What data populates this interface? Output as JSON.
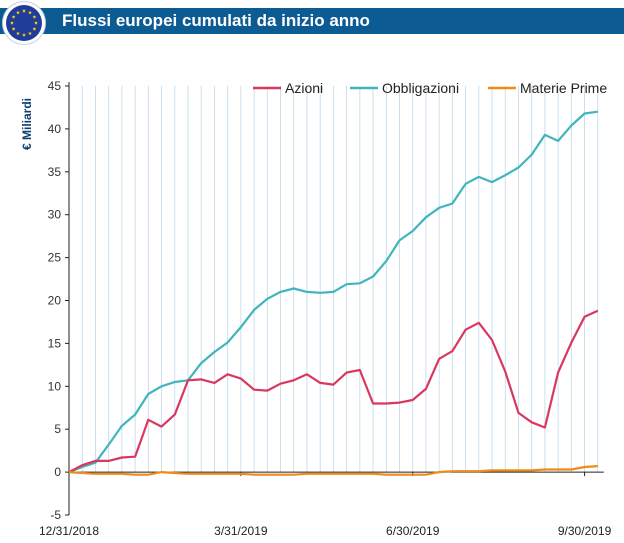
{
  "header": {
    "title": "Flussi europei cumulati da inizio anno"
  },
  "colors": {
    "header_bg": "#0d5b93",
    "azioni": "#d9385e",
    "obbligazioni": "#3fb5bd",
    "materie_prime": "#f08a19",
    "flag_blue": "#1f3d99",
    "flag_star": "#ffd700"
  },
  "icons": {
    "logo": "eu-flag-icon"
  },
  "chart_data": {
    "type": "line",
    "ylabel": "€ Miliardi",
    "xlabel": "",
    "ylim": [
      -5,
      45
    ],
    "yticks": [
      -5,
      0,
      5,
      10,
      15,
      20,
      25,
      30,
      35,
      40,
      45
    ],
    "x_tick_labels": [
      "12/31/2018",
      "3/31/2019",
      "6/30/2019",
      "9/30/2019"
    ],
    "x_tick_positions": [
      0,
      13,
      26,
      39
    ],
    "grid": "vertical-weekly",
    "legend_position": "top",
    "series": [
      {
        "name": "Azioni",
        "color": "#d9385e",
        "values": [
          0,
          0.8,
          1.3,
          1.3,
          1.7,
          1.8,
          6.1,
          5.3,
          6.7,
          10.7,
          10.8,
          10.4,
          11.4,
          10.9,
          9.6,
          9.5,
          10.3,
          10.7,
          11.4,
          10.4,
          10.2,
          11.6,
          11.9,
          8.0,
          8.0,
          8.1,
          8.4,
          9.7,
          13.2,
          14.1,
          16.6,
          17.4,
          15.4,
          11.7,
          6.9,
          5.8,
          5.2,
          11.6,
          15.1,
          18.1,
          18.8
        ]
      },
      {
        "name": "Obbligazioni",
        "color": "#3fb5bd",
        "values": [
          0,
          0.6,
          1.1,
          3.2,
          5.4,
          6.7,
          9.1,
          10.0,
          10.5,
          10.7,
          12.7,
          14.0,
          15.1,
          16.9,
          18.9,
          20.2,
          21.0,
          21.4,
          21.0,
          20.9,
          21.0,
          21.9,
          22.0,
          22.8,
          24.6,
          27.0,
          28.1,
          29.7,
          30.8,
          31.3,
          33.6,
          34.4,
          33.8,
          34.6,
          35.5,
          37.0,
          39.3,
          38.6,
          40.4,
          41.8,
          42.0
        ]
      },
      {
        "name": "Materie Prime",
        "color": "#f08a19",
        "values": [
          0,
          -0.1,
          -0.2,
          -0.2,
          -0.2,
          -0.3,
          -0.3,
          0.0,
          -0.1,
          -0.2,
          -0.2,
          -0.2,
          -0.2,
          -0.2,
          -0.3,
          -0.3,
          -0.3,
          -0.3,
          -0.2,
          -0.2,
          -0.2,
          -0.2,
          -0.2,
          -0.2,
          -0.3,
          -0.3,
          -0.3,
          -0.3,
          0.0,
          0.1,
          0.1,
          0.1,
          0.2,
          0.2,
          0.2,
          0.2,
          0.3,
          0.3,
          0.3,
          0.6,
          0.7
        ]
      }
    ]
  }
}
